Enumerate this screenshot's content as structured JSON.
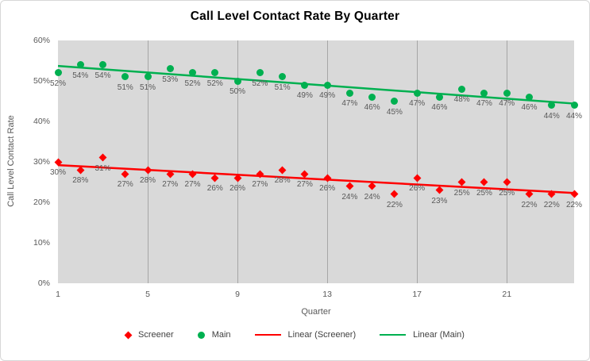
{
  "chart_data": {
    "type": "scatter",
    "title": "Call Level Contact Rate By Quarter",
    "xlabel": "Quarter",
    "ylabel": "Call Level Contact Rate",
    "xlim": [
      1,
      24
    ],
    "ylim": [
      0,
      60
    ],
    "grid": "vertical-major-only",
    "legend_position": "bottom",
    "x_ticks": [
      {
        "value": 1,
        "label": "1"
      },
      {
        "value": 5,
        "label": "5"
      },
      {
        "value": 9,
        "label": "9"
      },
      {
        "value": 13,
        "label": "13"
      },
      {
        "value": 17,
        "label": "17"
      },
      {
        "value": 21,
        "label": "21"
      }
    ],
    "y_ticks": [
      {
        "value": 0,
        "label": "0%"
      },
      {
        "value": 10,
        "label": "10%"
      },
      {
        "value": 20,
        "label": "20%"
      },
      {
        "value": 30,
        "label": "30%"
      },
      {
        "value": 40,
        "label": "40%"
      },
      {
        "value": 50,
        "label": "50%"
      },
      {
        "value": 60,
        "label": "60%"
      }
    ],
    "gridlines_x": [
      5,
      9,
      13,
      17,
      21
    ],
    "x": [
      1,
      2,
      3,
      4,
      5,
      6,
      7,
      8,
      9,
      10,
      11,
      12,
      13,
      14,
      15,
      16,
      17,
      18,
      19,
      20,
      21,
      22,
      23,
      24
    ],
    "series": [
      {
        "name": "Screener",
        "marker": "diamond",
        "color": "#FF0000",
        "values": [
          30,
          28,
          31,
          27,
          28,
          27,
          27,
          26,
          26,
          27,
          28,
          27,
          26,
          24,
          24,
          22,
          26,
          23,
          25,
          25,
          25,
          22,
          22,
          22
        ],
        "labels": [
          "30%",
          "28%",
          "31%",
          "27%",
          "28%",
          "27%",
          "27%",
          "26%",
          "26%",
          "27%",
          "28%",
          "27%",
          "26%",
          "24%",
          "24%",
          "22%",
          "26%",
          "23%",
          "25%",
          "25%",
          "25%",
          "22%",
          "22%",
          "22%"
        ]
      },
      {
        "name": "Main",
        "marker": "circle",
        "color": "#00B050",
        "values": [
          52,
          54,
          54,
          51,
          51,
          53,
          52,
          52,
          50,
          52,
          51,
          49,
          49,
          47,
          46,
          45,
          47,
          46,
          48,
          47,
          47,
          46,
          44,
          44
        ],
        "labels": [
          "52%",
          "54%",
          "54%",
          "51%",
          "51%",
          "53%",
          "52%",
          "52%",
          "50%",
          "52%",
          "51%",
          "49%",
          "49%",
          "47%",
          "46%",
          "45%",
          "47%",
          "46%",
          "48%",
          "47%",
          "47%",
          "46%",
          "44%",
          "44%"
        ]
      }
    ],
    "trendlines": [
      {
        "name": "Linear (Screener)",
        "color": "#FF0000",
        "y_start": 29.2,
        "y_end": 22.3
      },
      {
        "name": "Linear (Main)",
        "color": "#00B050",
        "y_start": 53.7,
        "y_end": 44.4
      }
    ],
    "legend": [
      {
        "label": "Screener",
        "swatch": "diamond",
        "color": "#FF0000"
      },
      {
        "label": "Main",
        "swatch": "circle",
        "color": "#00B050"
      },
      {
        "label": "Linear (Screener)",
        "swatch": "line",
        "color": "#FF0000"
      },
      {
        "label": "Linear (Main)",
        "swatch": "line",
        "color": "#00B050"
      }
    ],
    "colors": {
      "plot_bg": "#D9D9D9",
      "gridline": "#A6A6A6",
      "data_label": "#595959",
      "tick_label": "#595959",
      "axis_title": "#595959",
      "title": "#000000"
    }
  }
}
